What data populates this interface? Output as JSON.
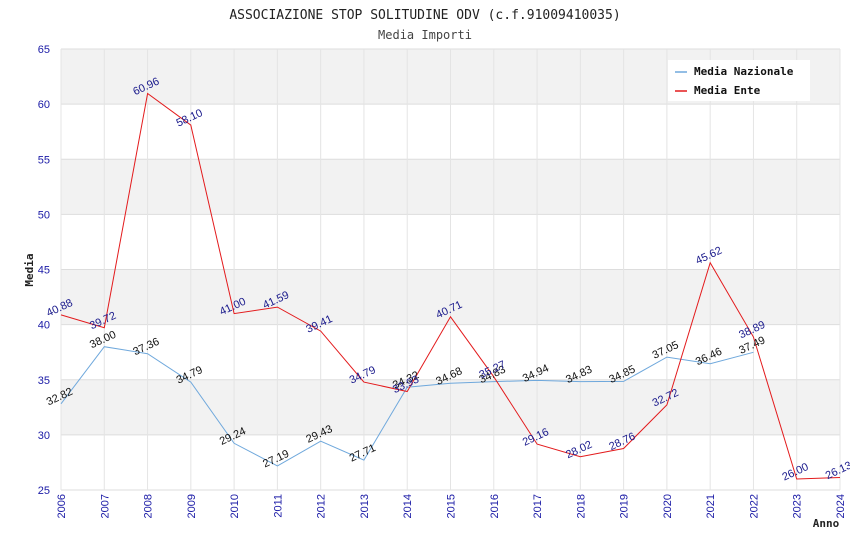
{
  "chart_data": {
    "type": "line",
    "title": "ASSOCIAZIONE STOP SOLITUDINE ODV (c.f.91009410035)",
    "subtitle": "Media Importi",
    "xlabel": "Anno",
    "ylabel": "Media",
    "ylim": [
      25,
      65
    ],
    "yticks": [
      25,
      30,
      35,
      40,
      45,
      50,
      55,
      60,
      65
    ],
    "x": [
      "2006",
      "2007",
      "2008",
      "2009",
      "2010",
      "2011",
      "2012",
      "2013",
      "2014",
      "2015",
      "2016",
      "2017",
      "2018",
      "2019",
      "2020",
      "2021",
      "2022",
      "2023",
      "2024"
    ],
    "grid": true,
    "legend_position": "top-right",
    "series": [
      {
        "name": "Media Nazionale",
        "color": "#6fa8dc",
        "values": [
          32.82,
          38.0,
          37.36,
          34.79,
          29.24,
          27.19,
          29.43,
          27.71,
          34.32,
          34.68,
          34.83,
          34.94,
          34.83,
          34.85,
          37.05,
          36.46,
          37.49,
          null,
          null
        ],
        "labels": [
          "32.82",
          "38.00",
          "37.36",
          "34.79",
          "29.24",
          "27.19",
          "29.43",
          "27.71",
          "34.32",
          "34.68",
          "34.83",
          "34.94",
          "34.83",
          "34.85",
          "37.05",
          "36.46",
          "37.49",
          "",
          ""
        ]
      },
      {
        "name": "Media Ente",
        "color": "#e31a1c",
        "values": [
          40.88,
          39.72,
          60.96,
          58.1,
          41.0,
          41.59,
          39.41,
          34.79,
          33.93,
          40.71,
          35.27,
          29.16,
          28.02,
          28.76,
          32.72,
          45.62,
          38.89,
          26.0,
          26.13
        ],
        "labels": [
          "40.88",
          "39.72",
          "60.96",
          "58.10",
          "41.00",
          "41.59",
          "39.41",
          "34.79",
          "33.93",
          "40.71",
          "35.27",
          "29.16",
          "28.02",
          "28.76",
          "32.72",
          "45.62",
          "38.89",
          "26.00",
          "26.13"
        ]
      }
    ]
  }
}
